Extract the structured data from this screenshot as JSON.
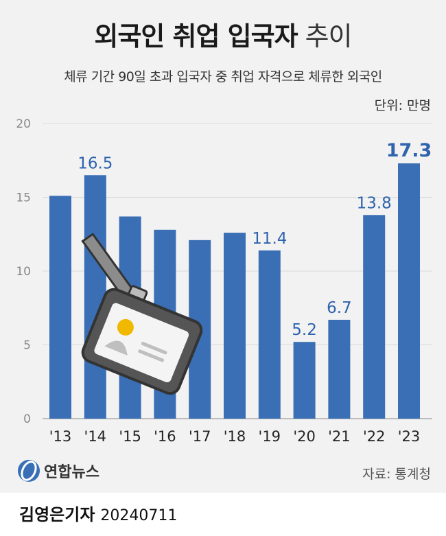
{
  "title_main": "외국인 취업 입국자",
  "title_light": " 추이",
  "subtitle": "체류 기간 90일 초과 입국자 중 취업 자격으로 체류한 외국인",
  "unit": "단위: 만명",
  "source": "자료: 통계청",
  "logo_text": "연합뉴스",
  "reporter": "김영은기자",
  "date": "20240711",
  "colors": {
    "bar": "#3a6fb5",
    "label": "#2f63ad",
    "grid": "#d9d9d9"
  },
  "chart_data": {
    "type": "bar",
    "categories": [
      "'13",
      "'14",
      "'15",
      "'16",
      "'17",
      "'18",
      "'19",
      "'20",
      "'21",
      "'22",
      "'23"
    ],
    "values": [
      15.1,
      16.5,
      13.7,
      12.8,
      12.1,
      12.6,
      11.4,
      5.2,
      6.7,
      13.8,
      17.3
    ],
    "labels": [
      "",
      "16.5",
      "",
      "",
      "",
      "",
      "11.4",
      "5.2",
      "6.7",
      "13.8",
      "17.3"
    ],
    "ylim": [
      0,
      20
    ],
    "yticks": [
      "0",
      "5",
      "10",
      "15",
      "20"
    ],
    "grid": true
  }
}
